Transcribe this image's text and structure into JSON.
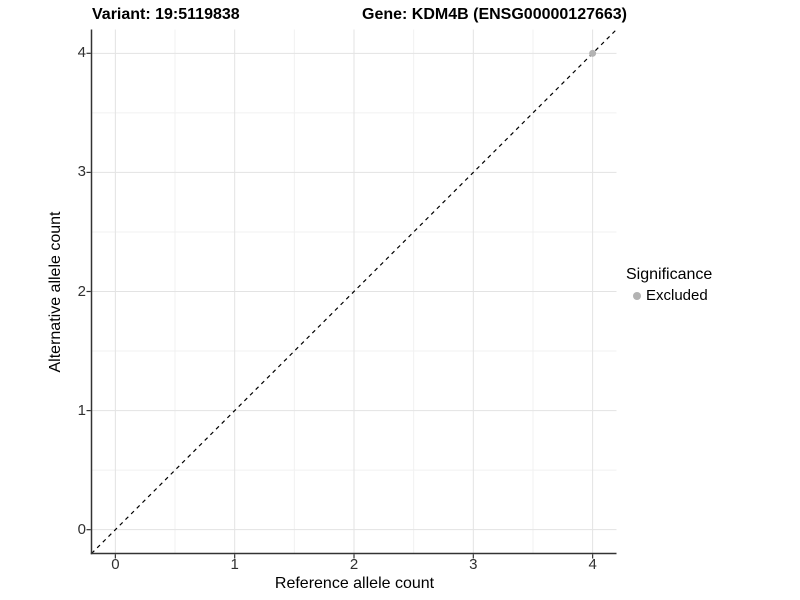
{
  "header": {
    "variant_title": "Variant: 19:5119838",
    "gene_title": "Gene: KDM4B (ENSG00000127663)"
  },
  "chart_data": {
    "type": "scatter",
    "title": "Variant: 19:5119838  |  Gene: KDM4B (ENSG00000127663)",
    "xlabel": "Reference allele count",
    "ylabel": "Alternative allele count",
    "xlim": [
      -0.2,
      4.2
    ],
    "ylim": [
      -0.2,
      4.2
    ],
    "x_ticks": [
      0,
      1,
      2,
      3,
      4
    ],
    "y_ticks": [
      0,
      1,
      2,
      3,
      4
    ],
    "x_minor_ticks": [
      0.5,
      1.5,
      2.5,
      3.5
    ],
    "y_minor_ticks": [
      0.5,
      1.5,
      2.5,
      3.5
    ],
    "grid": true,
    "reference_line": {
      "slope": 1,
      "intercept": 0,
      "style": "dashed",
      "color": "#000000"
    },
    "series": [
      {
        "name": "Excluded",
        "color": "#b3b3b3",
        "points": [
          {
            "x": 4,
            "y": 4
          }
        ]
      }
    ],
    "legend": {
      "title": "Significance",
      "position": "right",
      "items": [
        {
          "label": "Excluded",
          "color": "#b3b3b3"
        }
      ]
    }
  },
  "colors": {
    "background": "#ffffff",
    "axis_line": "#333333",
    "tick_mark": "#333333",
    "tick_label": "#303030",
    "grid_major": "#e3e3e3",
    "grid_minor": "#f1f1f1"
  }
}
